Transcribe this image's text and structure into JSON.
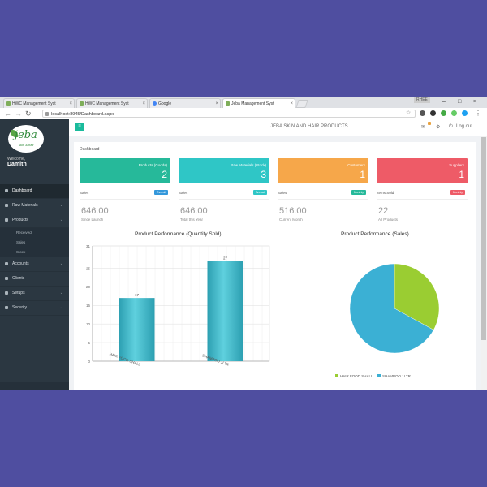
{
  "browser": {
    "tabs": [
      {
        "title": "HWC Management Syst"
      },
      {
        "title": "HWC Management Syst"
      },
      {
        "title": "Google"
      },
      {
        "title": "Jeba Management Syst"
      }
    ],
    "user_badge": "RHEE",
    "url": "localhost:8945/Dashboard.aspx"
  },
  "sidebar": {
    "logo_text": "jeba",
    "logo_sub": "skin & hair",
    "welcome": "Welcome,",
    "user": "Damith",
    "items": [
      {
        "label": "Dashboard"
      },
      {
        "label": "Raw Materials"
      },
      {
        "label": "Products"
      },
      {
        "label": "Accounts"
      },
      {
        "label": "Clients"
      },
      {
        "label": "Setups"
      },
      {
        "label": "Security"
      }
    ],
    "sub_items": [
      {
        "label": "Received"
      },
      {
        "label": "Sales"
      },
      {
        "label": "Stock"
      }
    ]
  },
  "topbar": {
    "brand": "JEBA SKIN AND HAIR PRODUCTS",
    "logout": "Log out"
  },
  "page": {
    "breadcrumb": "Dashboard"
  },
  "cards": [
    {
      "label": "Products (Goods)",
      "value": "2",
      "color": "#26b99a",
      "foot": "Sales",
      "badge": "Overall",
      "badge_color": "#3498db",
      "big": "646.00",
      "small": "Since Launch"
    },
    {
      "label": "Raw Materials (Stock)",
      "value": "3",
      "color": "#2fc6c6",
      "foot": "Sales",
      "badge": "Annual",
      "badge_color": "#2fc6c6",
      "big": "646.00",
      "small": "Total this Year"
    },
    {
      "label": "Customers",
      "value": "1",
      "color": "#f6a74a",
      "foot": "Sales",
      "badge": "Monthly",
      "badge_color": "#26b99a",
      "big": "516.00",
      "small": "Current Month"
    },
    {
      "label": "Suppliers",
      "value": "1",
      "color": "#ee5b67",
      "foot": "Items Sold",
      "badge": "Monthly",
      "badge_color": "#ee5b67",
      "big": "22",
      "small": "All Products"
    }
  ],
  "chart_data": [
    {
      "type": "bar",
      "title": "Product Performance (Quantity Sold)",
      "categories": [
        "HAIR FOOD SHALL",
        "SHAMPOO 1LTR"
      ],
      "values": [
        17,
        27
      ],
      "data_labels": [
        "17",
        "27"
      ],
      "ylim": [
        0,
        31
      ],
      "yticks": [
        0,
        5,
        10,
        15,
        20,
        25,
        31
      ],
      "grid": true,
      "color": "#3ab5c6"
    },
    {
      "type": "pie",
      "title": "Product Performance (Sales)",
      "labels": [
        "HAIR FOOD SHALL",
        "SHAMPOO 1LTR"
      ],
      "values": [
        33,
        67
      ],
      "colors": [
        "#9acd32",
        "#3bb0d4"
      ],
      "legend": "bottom"
    }
  ]
}
